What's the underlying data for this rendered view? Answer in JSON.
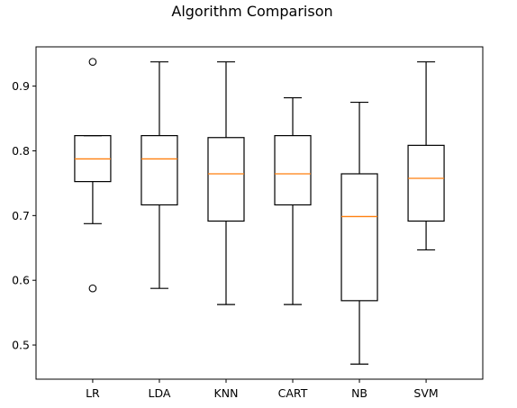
{
  "chart_data": {
    "type": "box",
    "title": "Algorithm Comparison",
    "xlabel": "",
    "ylabel": "",
    "categories": [
      "LR",
      "LDA",
      "KNN",
      "CART",
      "NB",
      "SVM"
    ],
    "boxes": [
      {
        "label": "LR",
        "whisker_low": 0.6875,
        "q1": 0.7525,
        "median": 0.7875,
        "q3": 0.8235,
        "whisker_high": 0.8235,
        "outliers": [
          0.5875,
          0.9375
        ]
      },
      {
        "label": "LDA",
        "whisker_low": 0.5875,
        "q1": 0.7165,
        "median": 0.7875,
        "q3": 0.8235,
        "whisker_high": 0.9375,
        "outliers": []
      },
      {
        "label": "KNN",
        "whisker_low": 0.5625,
        "q1": 0.6915,
        "median": 0.7645,
        "q3": 0.8205,
        "whisker_high": 0.9375,
        "outliers": []
      },
      {
        "label": "CART",
        "whisker_low": 0.5625,
        "q1": 0.7165,
        "median": 0.7645,
        "q3": 0.8235,
        "whisker_high": 0.882,
        "outliers": []
      },
      {
        "label": "NB",
        "whisker_low": 0.4705,
        "q1": 0.5685,
        "median": 0.6985,
        "q3": 0.7645,
        "whisker_high": 0.875,
        "outliers": []
      },
      {
        "label": "SVM",
        "whisker_low": 0.647,
        "q1": 0.6915,
        "median": 0.7575,
        "q3": 0.8085,
        "whisker_high": 0.9375,
        "outliers": []
      }
    ],
    "yticks": [
      0.5,
      0.6,
      0.7,
      0.8,
      0.9
    ],
    "ytick_labels": [
      "0.5",
      "0.6",
      "0.7",
      "0.8",
      "0.9"
    ],
    "ylim": [
      0.4472,
      0.9607
    ],
    "grid": false,
    "colors": {
      "box": "#000000",
      "median": "#ff7f0e",
      "whisker": "#000000",
      "outlier": "#000000"
    }
  }
}
